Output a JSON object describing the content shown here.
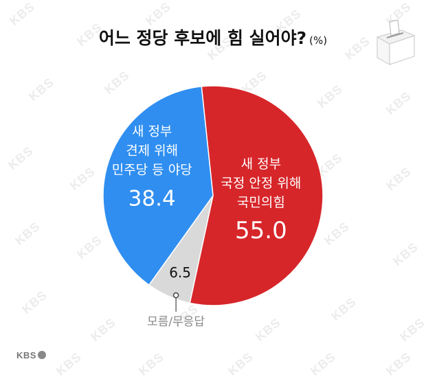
{
  "title": "어느 정당 후보에 힘 실어야?",
  "unit": "(%)",
  "watermark_text": "KBS",
  "footer_logo": "KBS",
  "colors": {
    "people_power": "#d7262a",
    "opposition": "#2f8ef0",
    "unknown": "#d9d9d9",
    "text_dark": "#111111",
    "text_light": "#ffffff",
    "muted": "#888888"
  },
  "chart_data": {
    "type": "pie",
    "title": "어느 정당 후보에 힘 실어야?",
    "unit": "(%)",
    "slices": [
      {
        "label": [
          "새 정부",
          "국정 안정 위해",
          "국민의힘"
        ],
        "value": 55.0,
        "display": "55.0",
        "color": "#d7262a"
      },
      {
        "label": [],
        "callout": "모름/무응답",
        "value": 6.5,
        "display": "6.5",
        "color": "#d9d9d9"
      },
      {
        "label": [
          "새 정부",
          "견제 위해",
          "민주당 등 야당"
        ],
        "value": 38.4,
        "display": "38.4",
        "color": "#2f8ef0"
      }
    ]
  }
}
